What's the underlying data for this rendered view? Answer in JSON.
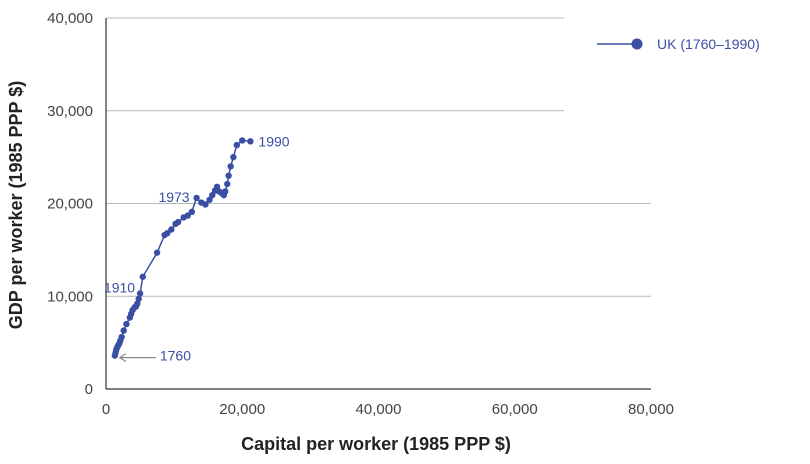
{
  "chart_data": {
    "type": "line",
    "xlabel": "Capital per worker (1985 PPP $)",
    "ylabel": "GDP per worker (1985 PPP $)",
    "xlim": [
      0,
      80000
    ],
    "ylim": [
      0,
      40000
    ],
    "x_ticks": [
      0,
      20000,
      40000,
      60000,
      80000
    ],
    "y_ticks": [
      0,
      10000,
      20000,
      30000,
      40000
    ],
    "x_tick_labels": [
      "0",
      "20,000",
      "40,000",
      "60,000",
      "80,000"
    ],
    "y_tick_labels": [
      "0",
      "10,000",
      "20,000",
      "30,000",
      "40,000"
    ],
    "grid": "horizontal",
    "legend_position": "top-right",
    "colors": {
      "series": "#3a4fa4",
      "grid": "#b8b8b8",
      "axis": "#333333",
      "arrow": "#888888"
    },
    "series": [
      {
        "name": "UK (1760–1990)",
        "x": [
          1300,
          1400,
          1500,
          1650,
          1800,
          1950,
          2100,
          2300,
          2600,
          3000,
          3500,
          3700,
          3900,
          4200,
          4400,
          4600,
          4800,
          5000,
          5400,
          7500,
          8600,
          9000,
          9600,
          10200,
          10600,
          11400,
          12000,
          12600,
          13300,
          14000,
          14600,
          15200,
          15600,
          16000,
          16300,
          16600,
          17000,
          17300,
          17500,
          17800,
          18000,
          18300,
          18700,
          19200,
          20000,
          21200
        ],
        "y": [
          3600,
          3900,
          4200,
          4500,
          4700,
          4900,
          5200,
          5600,
          6300,
          7000,
          7700,
          8100,
          8500,
          8800,
          8900,
          9200,
          9700,
          10300,
          12100,
          14700,
          16600,
          16800,
          17200,
          17800,
          18000,
          18500,
          18700,
          19100,
          20600,
          20100,
          19900,
          20400,
          20900,
          21400,
          21800,
          21300,
          21100,
          20900,
          21300,
          22100,
          23000,
          24000,
          25000,
          26300,
          26800,
          26700
        ]
      }
    ],
    "annotations": [
      {
        "text": "1760",
        "x": 1300,
        "y": 3600,
        "arrow": true
      },
      {
        "text": "1910",
        "x": 5000,
        "y": 10300
      },
      {
        "text": "1973",
        "x": 13300,
        "y": 20600
      },
      {
        "text": "1990",
        "x": 21200,
        "y": 26700
      }
    ]
  }
}
